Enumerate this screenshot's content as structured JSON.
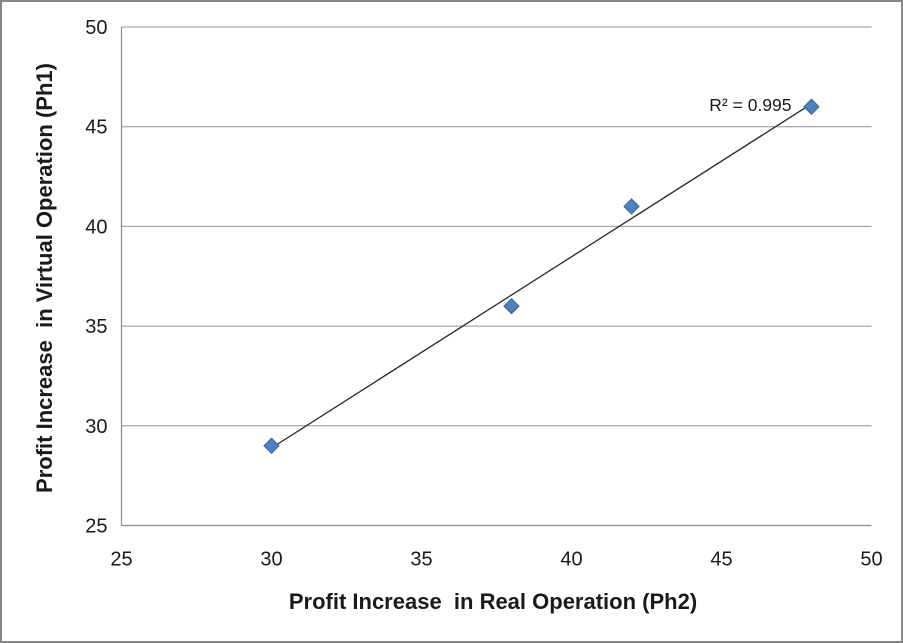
{
  "window": {
    "background": "#ffffff",
    "frame_border_color": "#878787"
  },
  "chart_data": {
    "type": "scatter",
    "xlabel": "Profit Increase  in Real Operation (Ph2)",
    "ylabel": "Profit Increase  in Virtual Operation (Ph1)",
    "xlim": [
      25,
      50
    ],
    "ylim": [
      25,
      50
    ],
    "xticks": [
      25,
      30,
      35,
      40,
      45,
      50
    ],
    "yticks": [
      25,
      30,
      35,
      40,
      45,
      50
    ],
    "grid": "horizontal-major-only",
    "legend": "none",
    "series": [
      {
        "points": [
          [
            30,
            29
          ],
          [
            38,
            36
          ],
          [
            42,
            41
          ],
          [
            48,
            46
          ]
        ],
        "marker": "diamond",
        "marker_color": "#4f81bd",
        "marker_border_color": "#38619c",
        "marker_size": 15
      }
    ],
    "trendline": {
      "type": "linear",
      "x_start": 30,
      "x_end": 48,
      "slope": 0.959,
      "intercept": 0.117,
      "color": "#262626",
      "annotation": "R² = 0.995"
    },
    "axis_color": "#8c8c8c",
    "gridline_color": "#949494",
    "text_color": "#1a1a1a"
  }
}
